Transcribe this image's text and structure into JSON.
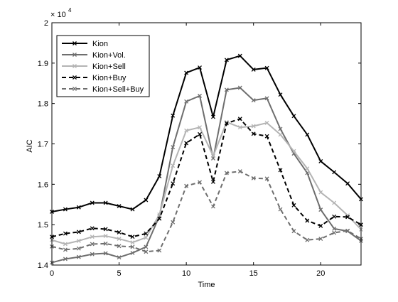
{
  "chart_data": {
    "type": "line",
    "title": "",
    "xlabel": "Time",
    "ylabel": "AIC",
    "y_multiplier_base": "× 10",
    "y_multiplier_exp": "4",
    "xlim": [
      0,
      23
    ],
    "ylim": [
      1.4,
      2.0
    ],
    "xticks": [
      0,
      5,
      10,
      15,
      20
    ],
    "xtick_labels": [
      "0",
      "5",
      "10",
      "15",
      "20"
    ],
    "yticks": [
      1.4,
      1.5,
      1.6,
      1.7,
      1.8,
      1.9,
      2.0
    ],
    "ytick_labels": [
      "1.4",
      "1.5",
      "1.6",
      "1.7",
      "1.8",
      "1.9",
      "2"
    ],
    "grid": false,
    "legend_position": "top-left",
    "x": [
      0,
      1,
      2,
      3,
      4,
      5,
      6,
      7,
      8,
      9,
      10,
      11,
      12,
      13,
      14,
      15,
      16,
      17,
      18,
      19,
      20,
      21,
      22,
      23
    ],
    "series": [
      {
        "name": "Kion",
        "color": "#000000",
        "dash": "solid",
        "values": [
          1.532,
          1.538,
          1.543,
          1.554,
          1.554,
          1.546,
          1.538,
          1.561,
          1.62,
          1.77,
          1.876,
          1.889,
          1.767,
          1.908,
          1.918,
          1.884,
          1.888,
          1.822,
          1.769,
          1.723,
          1.657,
          1.63,
          1.602,
          1.563
        ]
      },
      {
        "name": "Kion+Vol.",
        "color": "#6e6e6e",
        "dash": "solid",
        "values": [
          1.406,
          1.415,
          1.42,
          1.427,
          1.429,
          1.419,
          1.43,
          1.445,
          1.521,
          1.692,
          1.805,
          1.819,
          1.664,
          1.834,
          1.839,
          1.808,
          1.813,
          1.737,
          1.676,
          1.628,
          1.537,
          1.49,
          1.484,
          1.46
        ]
      },
      {
        "name": "Kion+Sell",
        "color": "#b4b4b4",
        "dash": "solid",
        "values": [
          1.462,
          1.452,
          1.46,
          1.47,
          1.472,
          1.465,
          1.456,
          1.468,
          1.525,
          1.646,
          1.733,
          1.741,
          1.67,
          1.754,
          1.741,
          1.744,
          1.752,
          1.723,
          1.682,
          1.639,
          1.58,
          1.554,
          1.523,
          1.488
        ]
      },
      {
        "name": "Kion+Buy",
        "color": "#000000",
        "dash": "dashed",
        "values": [
          1.47,
          1.478,
          1.482,
          1.491,
          1.489,
          1.481,
          1.47,
          1.478,
          1.515,
          1.602,
          1.702,
          1.724,
          1.606,
          1.751,
          1.762,
          1.725,
          1.719,
          1.635,
          1.548,
          1.51,
          1.497,
          1.52,
          1.519,
          1.5
        ]
      },
      {
        "name": "Kion+Sell+Buy",
        "color": "#6e6e6e",
        "dash": "dashed",
        "values": [
          1.446,
          1.438,
          1.441,
          1.452,
          1.453,
          1.447,
          1.445,
          1.433,
          1.436,
          1.506,
          1.596,
          1.605,
          1.545,
          1.628,
          1.632,
          1.615,
          1.614,
          1.538,
          1.484,
          1.462,
          1.465,
          1.48,
          1.485,
          1.465
        ]
      }
    ]
  }
}
